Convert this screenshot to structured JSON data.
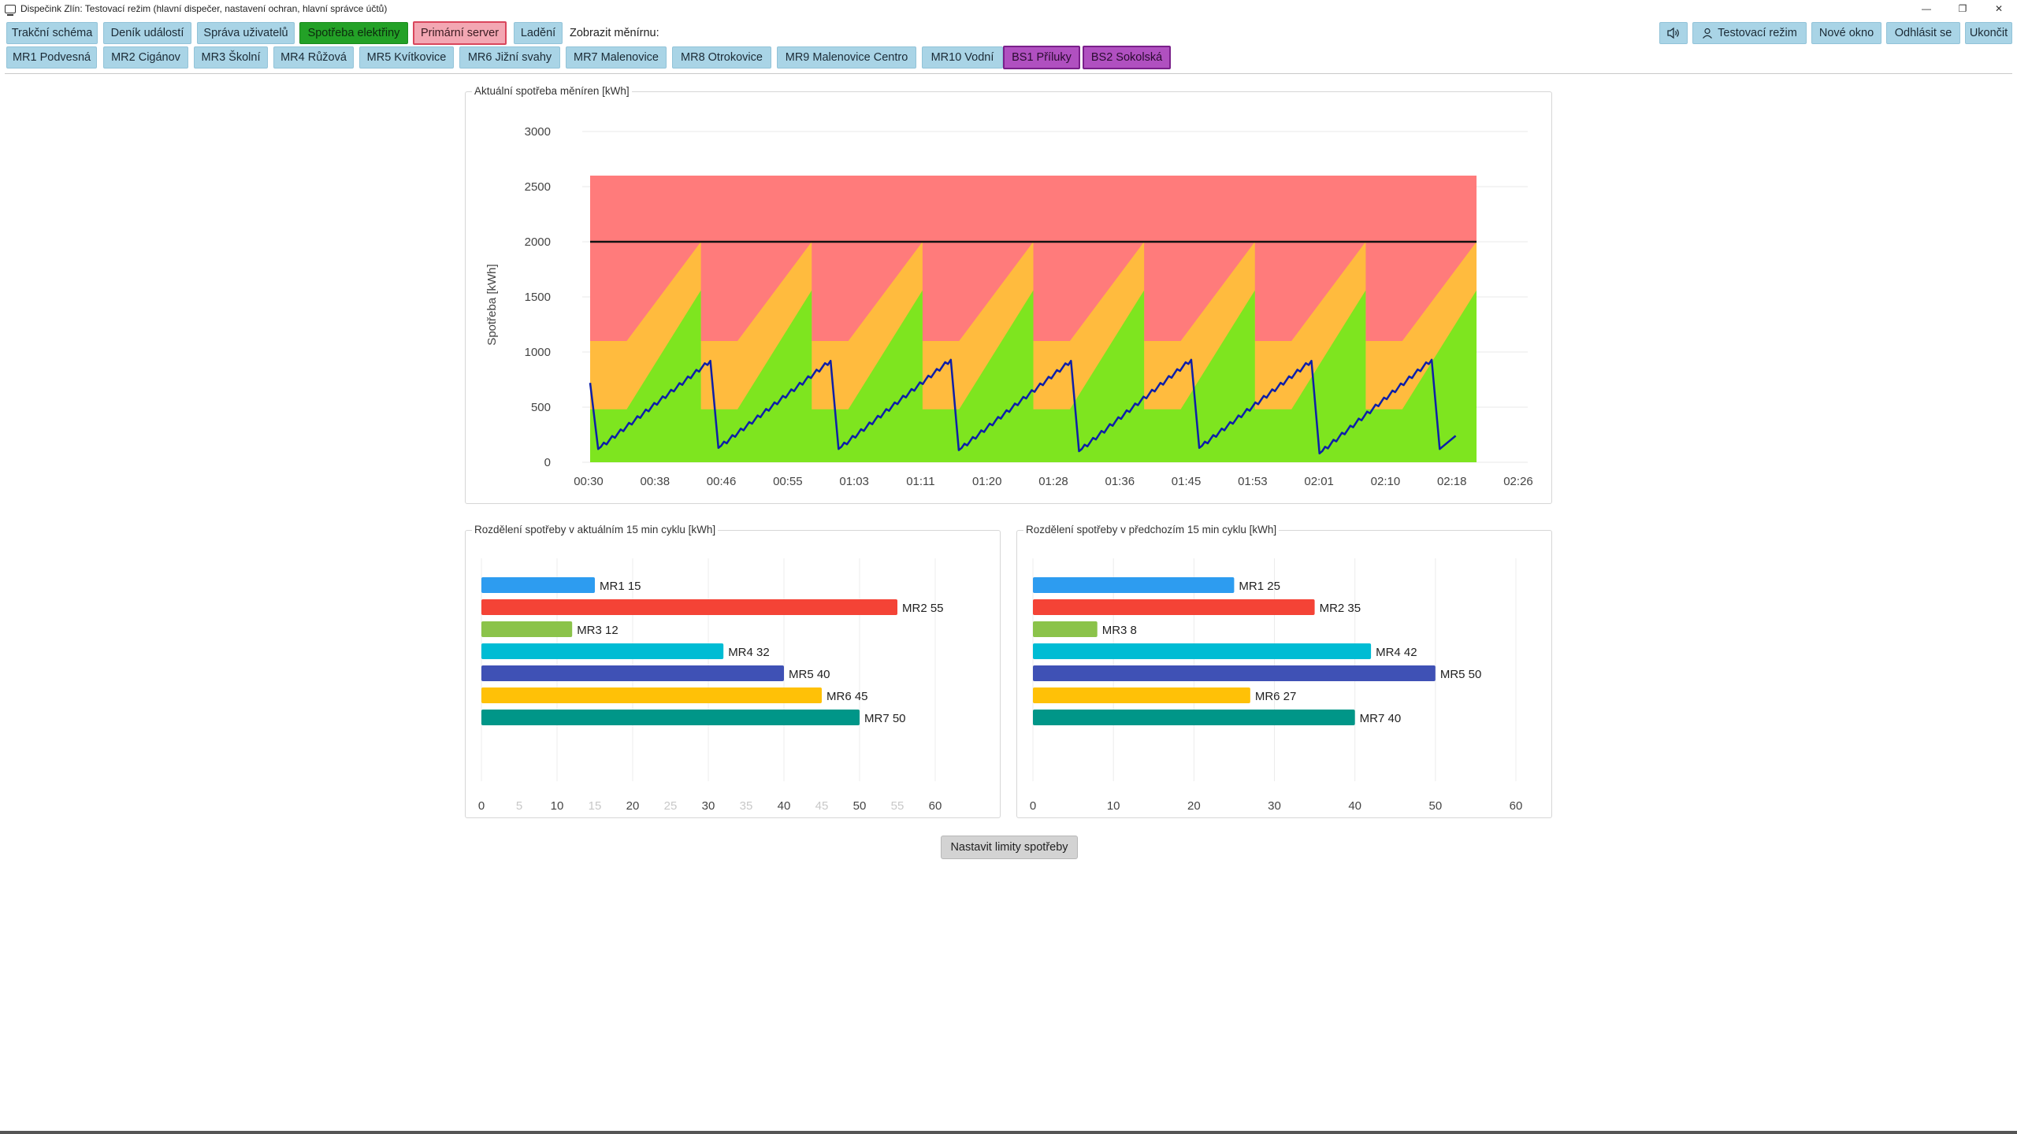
{
  "window": {
    "title": "Dispečink Zlín: Testovací režim (hlavní dispečer, nastavení ochran, hlavní správce účtů)",
    "controls": {
      "minimize": "—",
      "restore": "❐",
      "close": "✕"
    }
  },
  "toolbar": {
    "row1": [
      {
        "label": "Trakční schéma",
        "style": "normal"
      },
      {
        "label": "Deník událostí",
        "style": "normal"
      },
      {
        "label": "Správa uživatelů",
        "style": "normal"
      },
      {
        "label": "Spotřeba elektřiny",
        "style": "green"
      },
      {
        "label": "Primární server",
        "style": "pink"
      },
      {
        "label": "Ladění",
        "style": "normal"
      }
    ],
    "show_label": "Zobrazit měnírnu:",
    "right": {
      "sound_icon": "speaker-icon",
      "test_mode": "Testovací režim",
      "new_window": "Nové okno",
      "logout": "Odhlásit se",
      "exit": "Ukončit"
    },
    "row2": [
      {
        "label": "MR1 Podvesná",
        "style": "normal"
      },
      {
        "label": "MR2 Cigánov",
        "style": "normal"
      },
      {
        "label": "MR3 Školní",
        "style": "normal"
      },
      {
        "label": "MR4 Růžová",
        "style": "normal"
      },
      {
        "label": "MR5 Kvítkovice",
        "style": "normal"
      },
      {
        "label": "MR6 Jižní svahy",
        "style": "normal"
      },
      {
        "label": "MR7 Malenovice",
        "style": "normal"
      },
      {
        "label": "MR8 Otrokovice",
        "style": "normal"
      },
      {
        "label": "MR9 Malenovice Centro",
        "style": "normal"
      },
      {
        "label": "MR10 Vodní",
        "style": "normal"
      },
      {
        "label": "BS1 Příluky",
        "style": "purple"
      },
      {
        "label": "BS2 Sokolská",
        "style": "purple"
      }
    ]
  },
  "colors": {
    "button": "#a9d4e6",
    "active_green": "#23a127",
    "server_pink": "#f3a7b3",
    "purple": "#b050c0",
    "zone_red": "#ff7b7b",
    "zone_orange": "#ffbb3e",
    "zone_green": "#7ee51f",
    "line_blue": "#0d1fa8",
    "limit_line": "#111111"
  },
  "chart_data": [
    {
      "type": "line",
      "title": "Aktuální spotřeba měníren [kWh]",
      "ylabel": "Spotřeba [kWh]",
      "xlabel": "",
      "ylim": [
        0,
        3000
      ],
      "yticks": [
        0,
        500,
        1000,
        1500,
        2000,
        2500,
        3000
      ],
      "xticks": [
        "00:30",
        "00:38",
        "00:46",
        "00:55",
        "01:03",
        "01:11",
        "01:20",
        "01:28",
        "01:36",
        "01:45",
        "01:53",
        "02:01",
        "02:10",
        "02:18",
        "02:26"
      ],
      "x_start": "00:30",
      "x_end": "02:26",
      "limit": 2000,
      "zone_max": 2600,
      "cycle_minutes": 15,
      "zones_per_cycle": {
        "green_start": 480,
        "green_end": 1560,
        "orange_start": 1100,
        "orange_end": 2000
      },
      "series": [
        {
          "values": [
            {
              "x": "00:30",
              "y": 720
            },
            {
              "x": "00:31",
              "y": 120
            },
            {
              "x": "00:45",
              "y": 920
            },
            {
              "x": "00:46",
              "y": 130
            },
            {
              "x": "01:00",
              "y": 920
            },
            {
              "x": "01:01",
              "y": 120
            },
            {
              "x": "01:15",
              "y": 930
            },
            {
              "x": "01:16",
              "y": 110
            },
            {
              "x": "01:30",
              "y": 920
            },
            {
              "x": "01:31",
              "y": 100
            },
            {
              "x": "01:45",
              "y": 930
            },
            {
              "x": "01:46",
              "y": 130
            },
            {
              "x": "02:00",
              "y": 920
            },
            {
              "x": "02:01",
              "y": 80
            },
            {
              "x": "02:15",
              "y": 930
            },
            {
              "x": "02:16",
              "y": 120
            },
            {
              "x": "02:18",
              "y": 240
            }
          ]
        }
      ],
      "grid": true
    },
    {
      "type": "bar",
      "orientation": "horizontal",
      "title": "Rozdělení spotřeby v aktuálním 15 min cyklu [kWh]",
      "categories": [
        "MR1",
        "MR2",
        "MR3",
        "MR4",
        "MR5",
        "MR6",
        "MR7"
      ],
      "values": [
        15,
        55,
        12,
        32,
        40,
        45,
        50
      ],
      "colors": [
        "#2d9cf0",
        "#f44336",
        "#8bc34a",
        "#00bcd4",
        "#3f51b5",
        "#ffc107",
        "#009688"
      ],
      "xlim": [
        0,
        60
      ],
      "xticks": [
        0,
        5,
        10,
        15,
        20,
        25,
        30,
        35,
        40,
        45,
        50,
        55,
        60
      ],
      "xticks_faint": [
        5,
        15,
        25,
        35,
        45,
        55
      ],
      "grid": true
    },
    {
      "type": "bar",
      "orientation": "horizontal",
      "title": "Rozdělení spotřeby v předchozím 15 min cyklu [kWh]",
      "categories": [
        "MR1",
        "MR2",
        "MR3",
        "MR4",
        "MR5",
        "MR6",
        "MR7"
      ],
      "values": [
        25,
        35,
        8,
        42,
        50,
        27,
        40
      ],
      "colors": [
        "#2d9cf0",
        "#f44336",
        "#8bc34a",
        "#00bcd4",
        "#3f51b5",
        "#ffc107",
        "#009688"
      ],
      "xlim": [
        0,
        60
      ],
      "xticks": [
        0,
        10,
        20,
        30,
        40,
        50,
        60
      ],
      "grid": true
    }
  ],
  "actions": {
    "set_limits": "Nastavit limity spotřeby"
  }
}
